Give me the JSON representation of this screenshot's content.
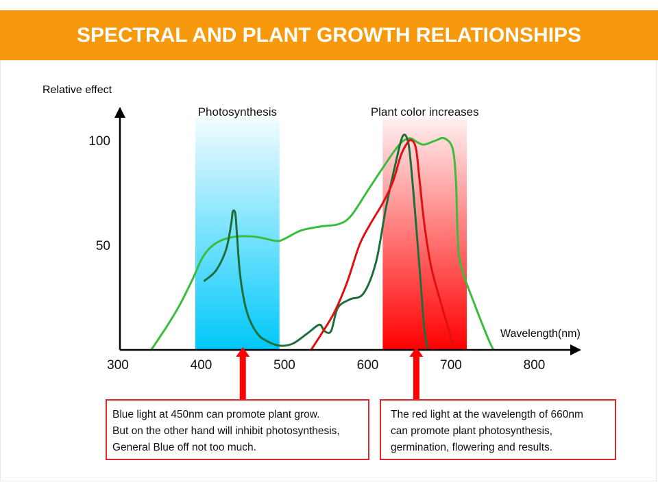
{
  "header": {
    "title": "SPECTRAL AND PLANT GROWTH RELATIONSHIPS"
  },
  "colors": {
    "banner": "#f7990c",
    "blue_band_top": "#f0fcff",
    "blue_band_bottom": "#00c8fa",
    "red_band_top": "#fff0f0",
    "red_band_bottom": "#ff0000",
    "light_green": "#3cbc3c",
    "dark_green": "#1e6e3c",
    "red": "#e01010",
    "arrow": "#ff0000",
    "note_border": "#d8282a"
  },
  "chart_data": {
    "type": "line",
    "title": "SPECTRAL AND PLANT GROWTH RELATIONSHIPS",
    "xlabel": "Wavelength(nm)",
    "ylabel": "Relative effect",
    "xlim": [
      300,
      850
    ],
    "ylim": [
      0,
      100
    ],
    "x_ticks": [
      300,
      400,
      500,
      600,
      700,
      800
    ],
    "y_ticks": [
      50,
      100
    ],
    "grid": false,
    "bands": [
      {
        "name": "Photosynthesis",
        "label": "Photosynthesis",
        "range": [
          393,
          494
        ],
        "color": "blue"
      },
      {
        "name": "Plant color increases",
        "label": "Plant color increases",
        "range": [
          618,
          719
        ],
        "color": "red"
      }
    ],
    "series": [
      {
        "name": "light-green-curve",
        "color": "light_green",
        "points": [
          [
            340,
            0
          ],
          [
            360,
            12
          ],
          [
            375,
            22
          ],
          [
            390,
            34
          ],
          [
            403,
            45
          ],
          [
            418,
            51
          ],
          [
            440,
            54
          ],
          [
            465,
            54
          ],
          [
            490,
            52
          ],
          [
            500,
            53
          ],
          [
            520,
            57
          ],
          [
            545,
            59
          ],
          [
            565,
            60
          ],
          [
            580,
            64
          ],
          [
            600,
            76
          ],
          [
            620,
            88
          ],
          [
            638,
            98
          ],
          [
            650,
            101
          ],
          [
            660,
            99
          ],
          [
            668,
            98
          ],
          [
            682,
            100
          ],
          [
            692,
            101
          ],
          [
            702,
            96
          ],
          [
            706,
            80
          ],
          [
            708,
            55
          ],
          [
            712,
            40
          ],
          [
            730,
            20
          ],
          [
            745,
            5
          ],
          [
            751,
            0
          ]
        ]
      },
      {
        "name": "dark-green-curve",
        "color": "dark_green",
        "points": [
          [
            404,
            33
          ],
          [
            418,
            38
          ],
          [
            430,
            48
          ],
          [
            436,
            60
          ],
          [
            438,
            66
          ],
          [
            441,
            65
          ],
          [
            443,
            55
          ],
          [
            447,
            35
          ],
          [
            455,
            18
          ],
          [
            467,
            8
          ],
          [
            480,
            4
          ],
          [
            495,
            2
          ],
          [
            510,
            3
          ],
          [
            528,
            8
          ],
          [
            542,
            12
          ],
          [
            548,
            9
          ],
          [
            556,
            9
          ],
          [
            564,
            20
          ],
          [
            578,
            24
          ],
          [
            595,
            27
          ],
          [
            610,
            42
          ],
          [
            622,
            68
          ],
          [
            634,
            90
          ],
          [
            642,
            102
          ],
          [
            648,
            100
          ],
          [
            652,
            88
          ],
          [
            658,
            60
          ],
          [
            664,
            30
          ],
          [
            668,
            10
          ],
          [
            672,
            1
          ]
        ]
      },
      {
        "name": "red-curve",
        "color": "red",
        "points": [
          [
            532,
            0
          ],
          [
            545,
            8
          ],
          [
            560,
            18
          ],
          [
            575,
            32
          ],
          [
            590,
            50
          ],
          [
            603,
            60
          ],
          [
            618,
            70
          ],
          [
            630,
            80
          ],
          [
            640,
            93
          ],
          [
            648,
            99
          ],
          [
            653,
            100
          ],
          [
            658,
            96
          ],
          [
            662,
            82
          ],
          [
            668,
            60
          ],
          [
            676,
            40
          ],
          [
            686,
            25
          ],
          [
            697,
            10
          ],
          [
            702,
            3
          ]
        ]
      }
    ],
    "annotations": [
      {
        "target_nm": 450,
        "text": "Blue light at 450nm can promote plant grow."
      },
      {
        "target_nm": 660,
        "text": "The red light at the wavelength of 660nm"
      }
    ]
  },
  "notes": {
    "left": {
      "lines": [
        "Blue light at 450nm can promote plant grow.",
        "But on the other hand will inhibit photosynthesis,",
        "General Blue off not too much."
      ]
    },
    "right": {
      "lines": [
        "The red light at the wavelength of 660nm",
        "can promote plant photosynthesis,",
        "germination, flowering and results."
      ]
    }
  }
}
